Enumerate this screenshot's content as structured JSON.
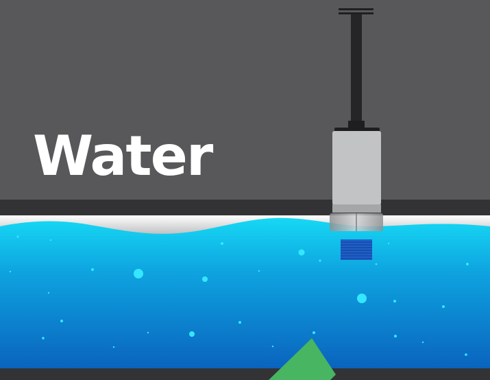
{
  "title": "Water",
  "colors": {
    "background": "#58585a",
    "tank_wall": "#333335",
    "water_top": "#14d4f2",
    "water_bottom": "#0a63bd",
    "sensor_body": "#c2c3c5",
    "sensor_rod": "#252527",
    "indicator": "#47b562",
    "bubbles": "#32e6ff"
  },
  "icons": {
    "sensor": "level-sensor-icon",
    "indicator": "green-pointer-shape"
  }
}
